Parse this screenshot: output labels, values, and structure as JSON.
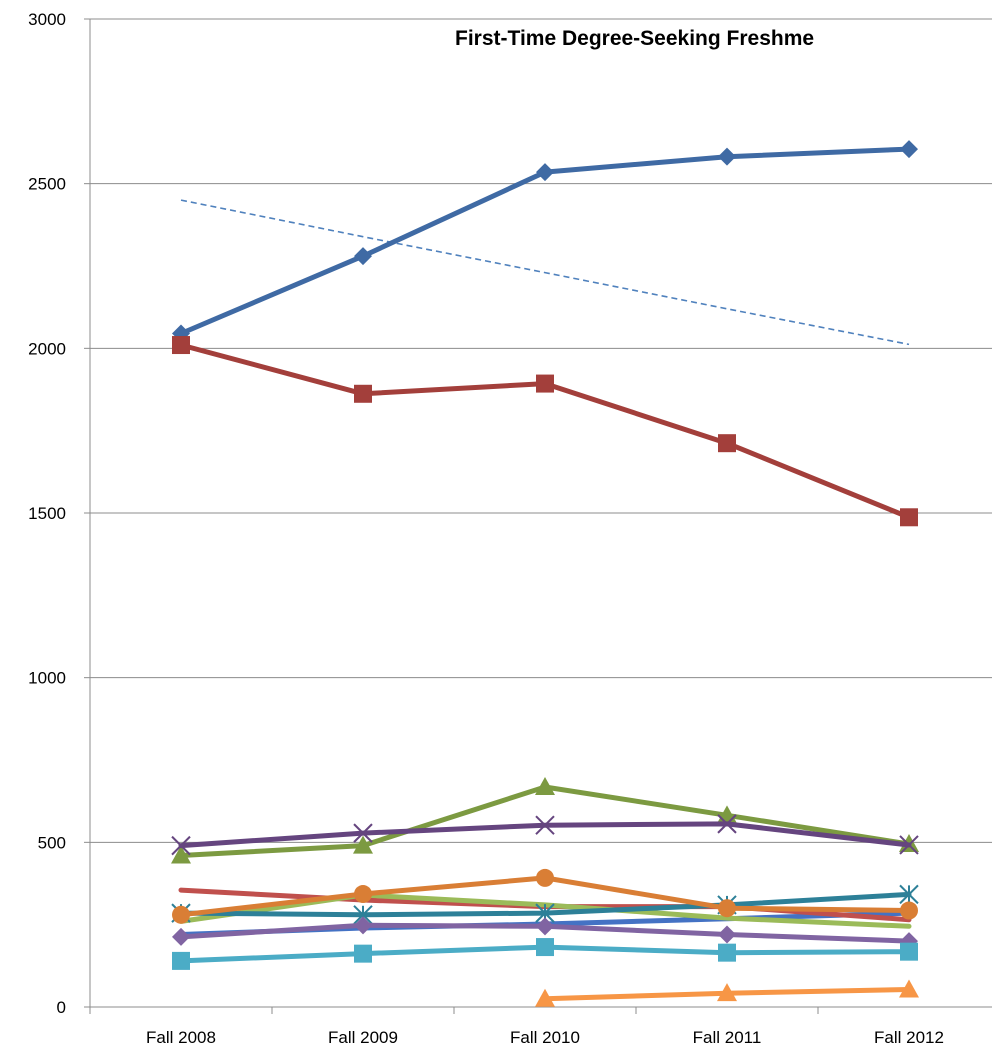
{
  "chart_data": {
    "type": "line",
    "title": "First-Time Degree-Seeking Freshme",
    "xlabel": "",
    "ylabel": "",
    "categories": [
      "Fall 2008",
      "Fall 2009",
      "Fall 2010",
      "Fall 2011",
      "Fall 2012"
    ],
    "ylim": [
      0,
      3000
    ],
    "yticks": [
      0,
      500,
      1000,
      1500,
      2000,
      2500,
      3000
    ],
    "grid": "horizontal",
    "series": [
      {
        "color": "#3f6aa4",
        "marker": "diamond",
        "values": [
          2045,
          2280,
          2535,
          2582,
          2605
        ]
      },
      {
        "color": "#a33f3b",
        "marker": "square",
        "values": [
          2010,
          1862,
          1893,
          1712,
          1487
        ]
      },
      {
        "color": "#7c9a41",
        "marker": "triangle",
        "values": [
          460,
          490,
          668,
          582,
          495
        ]
      },
      {
        "color": "#65457f",
        "marker": "x",
        "values": [
          490,
          528,
          552,
          556,
          492
        ]
      },
      {
        "color": "#2d8098",
        "marker": "star",
        "values": [
          285,
          280,
          285,
          310,
          342
        ]
      },
      {
        "color": "#d97e35",
        "marker": "circle",
        "values": [
          280,
          343,
          392,
          300,
          293
        ]
      },
      {
        "color": "#4472c4",
        "marker": "none",
        "values": [
          220,
          240,
          252,
          268,
          285
        ]
      },
      {
        "color": "#c0504d",
        "marker": "none",
        "values": [
          355,
          325,
          305,
          305,
          265
        ]
      },
      {
        "color": "#9bbb59",
        "marker": "none",
        "values": [
          260,
          340,
          310,
          270,
          245
        ]
      },
      {
        "color": "#8064a2",
        "marker": "diamond",
        "values": [
          213,
          248,
          245,
          220,
          200
        ]
      },
      {
        "color": "#4bacc6",
        "marker": "square",
        "values": [
          140,
          162,
          182,
          165,
          168
        ]
      },
      {
        "color": "#f79646",
        "marker": "triangle",
        "values": [
          null,
          null,
          25,
          42,
          53
        ]
      }
    ],
    "trendline": {
      "color": "#4f81bd",
      "style": "dashed",
      "values": [
        2450,
        2339,
        2230,
        2120,
        2012
      ]
    }
  }
}
